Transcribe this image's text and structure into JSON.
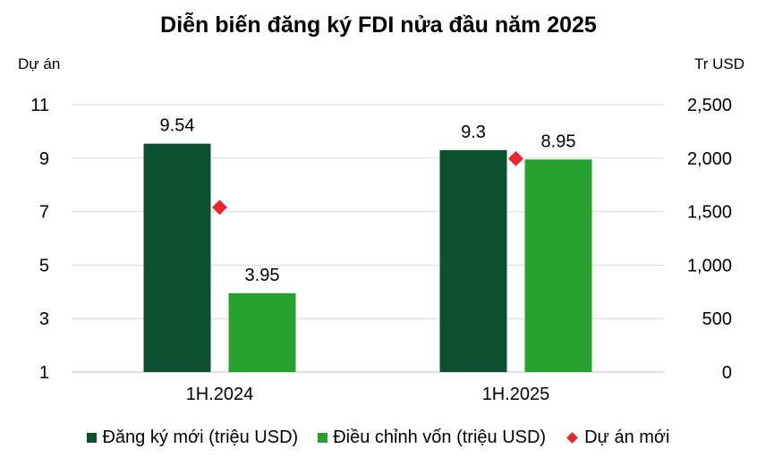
{
  "chart_data": {
    "type": "bar",
    "title": "Diễn biến đăng ký FDI nửa đầu năm 2025",
    "categories": [
      "1H.2024",
      "1H.2025"
    ],
    "y_left": {
      "label": "Dự án",
      "ticks": [
        "11",
        "9",
        "7",
        "5",
        "3",
        "1"
      ],
      "ylim": [
        1,
        11
      ]
    },
    "y_right": {
      "label": "Tr USD",
      "ticks": [
        "2,500",
        "2,000",
        "1,500",
        "1,000",
        "500",
        "0"
      ],
      "ylim": [
        0,
        2500
      ]
    },
    "series": [
      {
        "name": "Đăng ký mới (triệu USD)",
        "axis": "left",
        "values": [
          9.54,
          9.3
        ],
        "labels": [
          "9.54",
          "9.3"
        ],
        "color": "#0B5130"
      },
      {
        "name": "Điều chỉnh vốn (triệu USD)",
        "axis": "left",
        "values": [
          3.95,
          8.95
        ],
        "labels": [
          "3.95",
          "8.95"
        ],
        "color": "#27A22E"
      },
      {
        "name": "Dự án mới",
        "type": "scatter",
        "axis": "right",
        "values": [
          1540,
          1995
        ],
        "color": "#E8262C"
      }
    ],
    "grid": true,
    "legend_position": "bottom"
  }
}
